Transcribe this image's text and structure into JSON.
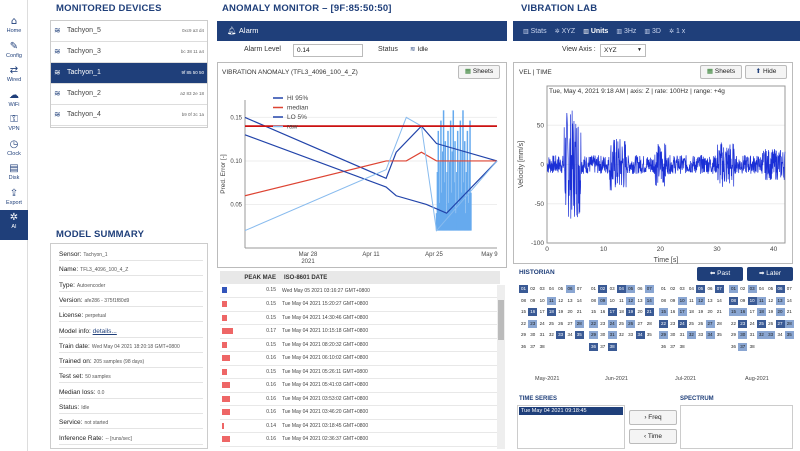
{
  "nav": [
    {
      "label": "Home",
      "icon": "⌂"
    },
    {
      "label": "Config",
      "icon": "✎"
    },
    {
      "label": "Wired",
      "icon": "⇄"
    },
    {
      "label": "WiFi",
      "icon": "☁"
    },
    {
      "label": "VPN",
      "icon": "⚿"
    },
    {
      "label": "Clock",
      "icon": "◷"
    },
    {
      "label": "Disk",
      "icon": "▤"
    },
    {
      "label": "Export",
      "icon": "⇪"
    },
    {
      "label": "AI",
      "icon": "✲"
    }
  ],
  "devices": {
    "title": "MONITORED DEVICES",
    "items": [
      {
        "name": "Tachyon_5",
        "id": "0xc9 a3 d4"
      },
      {
        "name": "Tachyon_3",
        "id": "bc 38 11 a4"
      },
      {
        "name": "Tachyon_1",
        "id": "9f 85 50 50"
      },
      {
        "name": "Tachyon_2",
        "id": "a2 83 2e 18"
      },
      {
        "name": "Tachyon_4",
        "id": "b9 0f 3c 1a"
      }
    ]
  },
  "summary": {
    "title": "MODEL SUMMARY",
    "rows": [
      {
        "k": "Sensor:",
        "v": "Tachyon_1"
      },
      {
        "k": "Name:",
        "v": "TFL3_4096_100_4_Z"
      },
      {
        "k": "Type:",
        "v": "Autoencoder"
      },
      {
        "k": "Version:",
        "v": "afe286 - 375f1f80d9"
      },
      {
        "k": "License:",
        "v": "perpetual"
      },
      {
        "k": "Model info:",
        "v": "",
        "link": "details..."
      },
      {
        "k": "Train date:",
        "v": "Wed May 04 2021 18:20:18 GMT+0800"
      },
      {
        "k": "Trained on:",
        "v": "205 samples (98 days)"
      },
      {
        "k": "Test set:",
        "v": "50 samples"
      },
      {
        "k": "Median loss:",
        "v": "0.0"
      },
      {
        "k": "Status:",
        "v": "Idle"
      },
      {
        "k": "Service:",
        "v": "not started"
      },
      {
        "k": "Inference Rate:",
        "v": "--     [runs/sec]"
      }
    ]
  },
  "anomaly": {
    "title": "ANOMALY MONITOR – [9F:85:50:50]",
    "tab": "Alarm",
    "alarm_level_label": "Alarm Level",
    "alarm_level": "0.14",
    "status_label": "Status",
    "status": "Idle",
    "chart_title": "VIBRATION ANOMALY (TFL3_4096_100_4_Z)",
    "sheets": "Sheets",
    "legend": [
      "HI 95%",
      "median",
      "LO 5%",
      "raw"
    ]
  },
  "peak": {
    "col1": "PEAK MAE",
    "col2": "ISO-8601 DATE",
    "rows": [
      {
        "v": "0.15",
        "d": "Wed May 05 2021 03:16:27 GMT+0800"
      },
      {
        "v": "0.15",
        "d": "Tue May 04 2021 15:20:27 GMT+0800"
      },
      {
        "v": "0.15",
        "d": "Tue May 04 2021 14:30:46 GMT+0800"
      },
      {
        "v": "0.17",
        "d": "Tue May 04 2021 10:15:18 GMT+0800"
      },
      {
        "v": "0.15",
        "d": "Tue May 04 2021 08:20:32 GMT+0800"
      },
      {
        "v": "0.16",
        "d": "Tue May 04 2021 06:10:02 GMT+0800"
      },
      {
        "v": "0.15",
        "d": "Tue May 04 2021 05:26:11 GMT+0800"
      },
      {
        "v": "0.16",
        "d": "Tue May 04 2021 05:41:03 GMT+0800"
      },
      {
        "v": "0.16",
        "d": "Tue May 04 2021 03:53:02 GMT+0800"
      },
      {
        "v": "0.16",
        "d": "Tue May 04 2021 03:46:20 GMT+0800"
      },
      {
        "v": "0.14",
        "d": "Tue May 04 2021 03:18:45 GMT+0800"
      },
      {
        "v": "0.16",
        "d": "Tue May 04 2021 02:36:37 GMT+0800"
      }
    ]
  },
  "vlab": {
    "title": "VIBRATION LAB",
    "tabs": [
      "Stats",
      "XYZ",
      "Units",
      "3Hz",
      "3D",
      "1 x"
    ],
    "view_axis_label": "View Axis :",
    "view_axis": "XYZ",
    "vel_title": "VEL | TIME",
    "sheets": "Sheets",
    "hide": "Hide",
    "subtitle": "Tue, May 4, 2021 9:18 AM | axis: Z | rate: 100Hz | range: +4g",
    "historian": "HISTORIAN",
    "past": "Past",
    "later": "Later",
    "months": [
      "May-2021",
      "Jun-2021",
      "Jul-2021",
      "Aug-2021"
    ],
    "time_series": "TIME SERIES",
    "spectrum": "SPECTRUM",
    "ts_item": "Tue May 04 2021 09:18:45",
    "freq": "Freq",
    "time": "Time"
  },
  "chart_data": [
    {
      "type": "line",
      "title": "VIBRATION ANOMALY (TFL3_4096_100_4_Z)",
      "ylabel": "Pred. Error [-]",
      "xlabel": "",
      "x_ticks": [
        "Mar 28\n2021",
        "Apr 11",
        "Apr 25",
        "May 9"
      ],
      "ylim": [
        0,
        0.17
      ],
      "y_ticks": [
        0.05,
        0.1,
        0.15
      ],
      "threshold": 0.14,
      "series": [
        {
          "name": "HI 95%",
          "x": [
            0,
            0.56,
            0.6,
            0.7,
            0.76,
            1
          ],
          "y": [
            0.15,
            0.08,
            0.11,
            0.14,
            0.12,
            0.1
          ]
        },
        {
          "name": "median",
          "x": [
            0,
            0.56,
            0.64,
            0.7,
            0.76,
            1
          ],
          "y": [
            0.06,
            0.1,
            0.1,
            0.11,
            0.1,
            0.1
          ]
        },
        {
          "name": "LO 5%",
          "x": [
            0,
            0.56,
            0.6,
            0.72,
            0.8,
            1
          ],
          "y": [
            0.13,
            0.07,
            0.06,
            0.05,
            0.04,
            0.1
          ]
        },
        {
          "name": "raw",
          "x": [
            0,
            0.56,
            0.6,
            0.64,
            0.7,
            0.76,
            1
          ],
          "y": [
            0.02,
            0.09,
            0.12,
            0.15,
            0.14,
            0.02,
            0.1
          ]
        }
      ]
    },
    {
      "type": "line",
      "title": "VEL | TIME",
      "xlabel": "Time [s]",
      "ylabel": "Velocity [mm/s]",
      "xlim": [
        0,
        42
      ],
      "ylim": [
        -100,
        100
      ],
      "x_ticks": [
        0,
        10,
        20,
        30,
        40
      ],
      "y_ticks": [
        -100,
        -50,
        0,
        50
      ]
    }
  ]
}
